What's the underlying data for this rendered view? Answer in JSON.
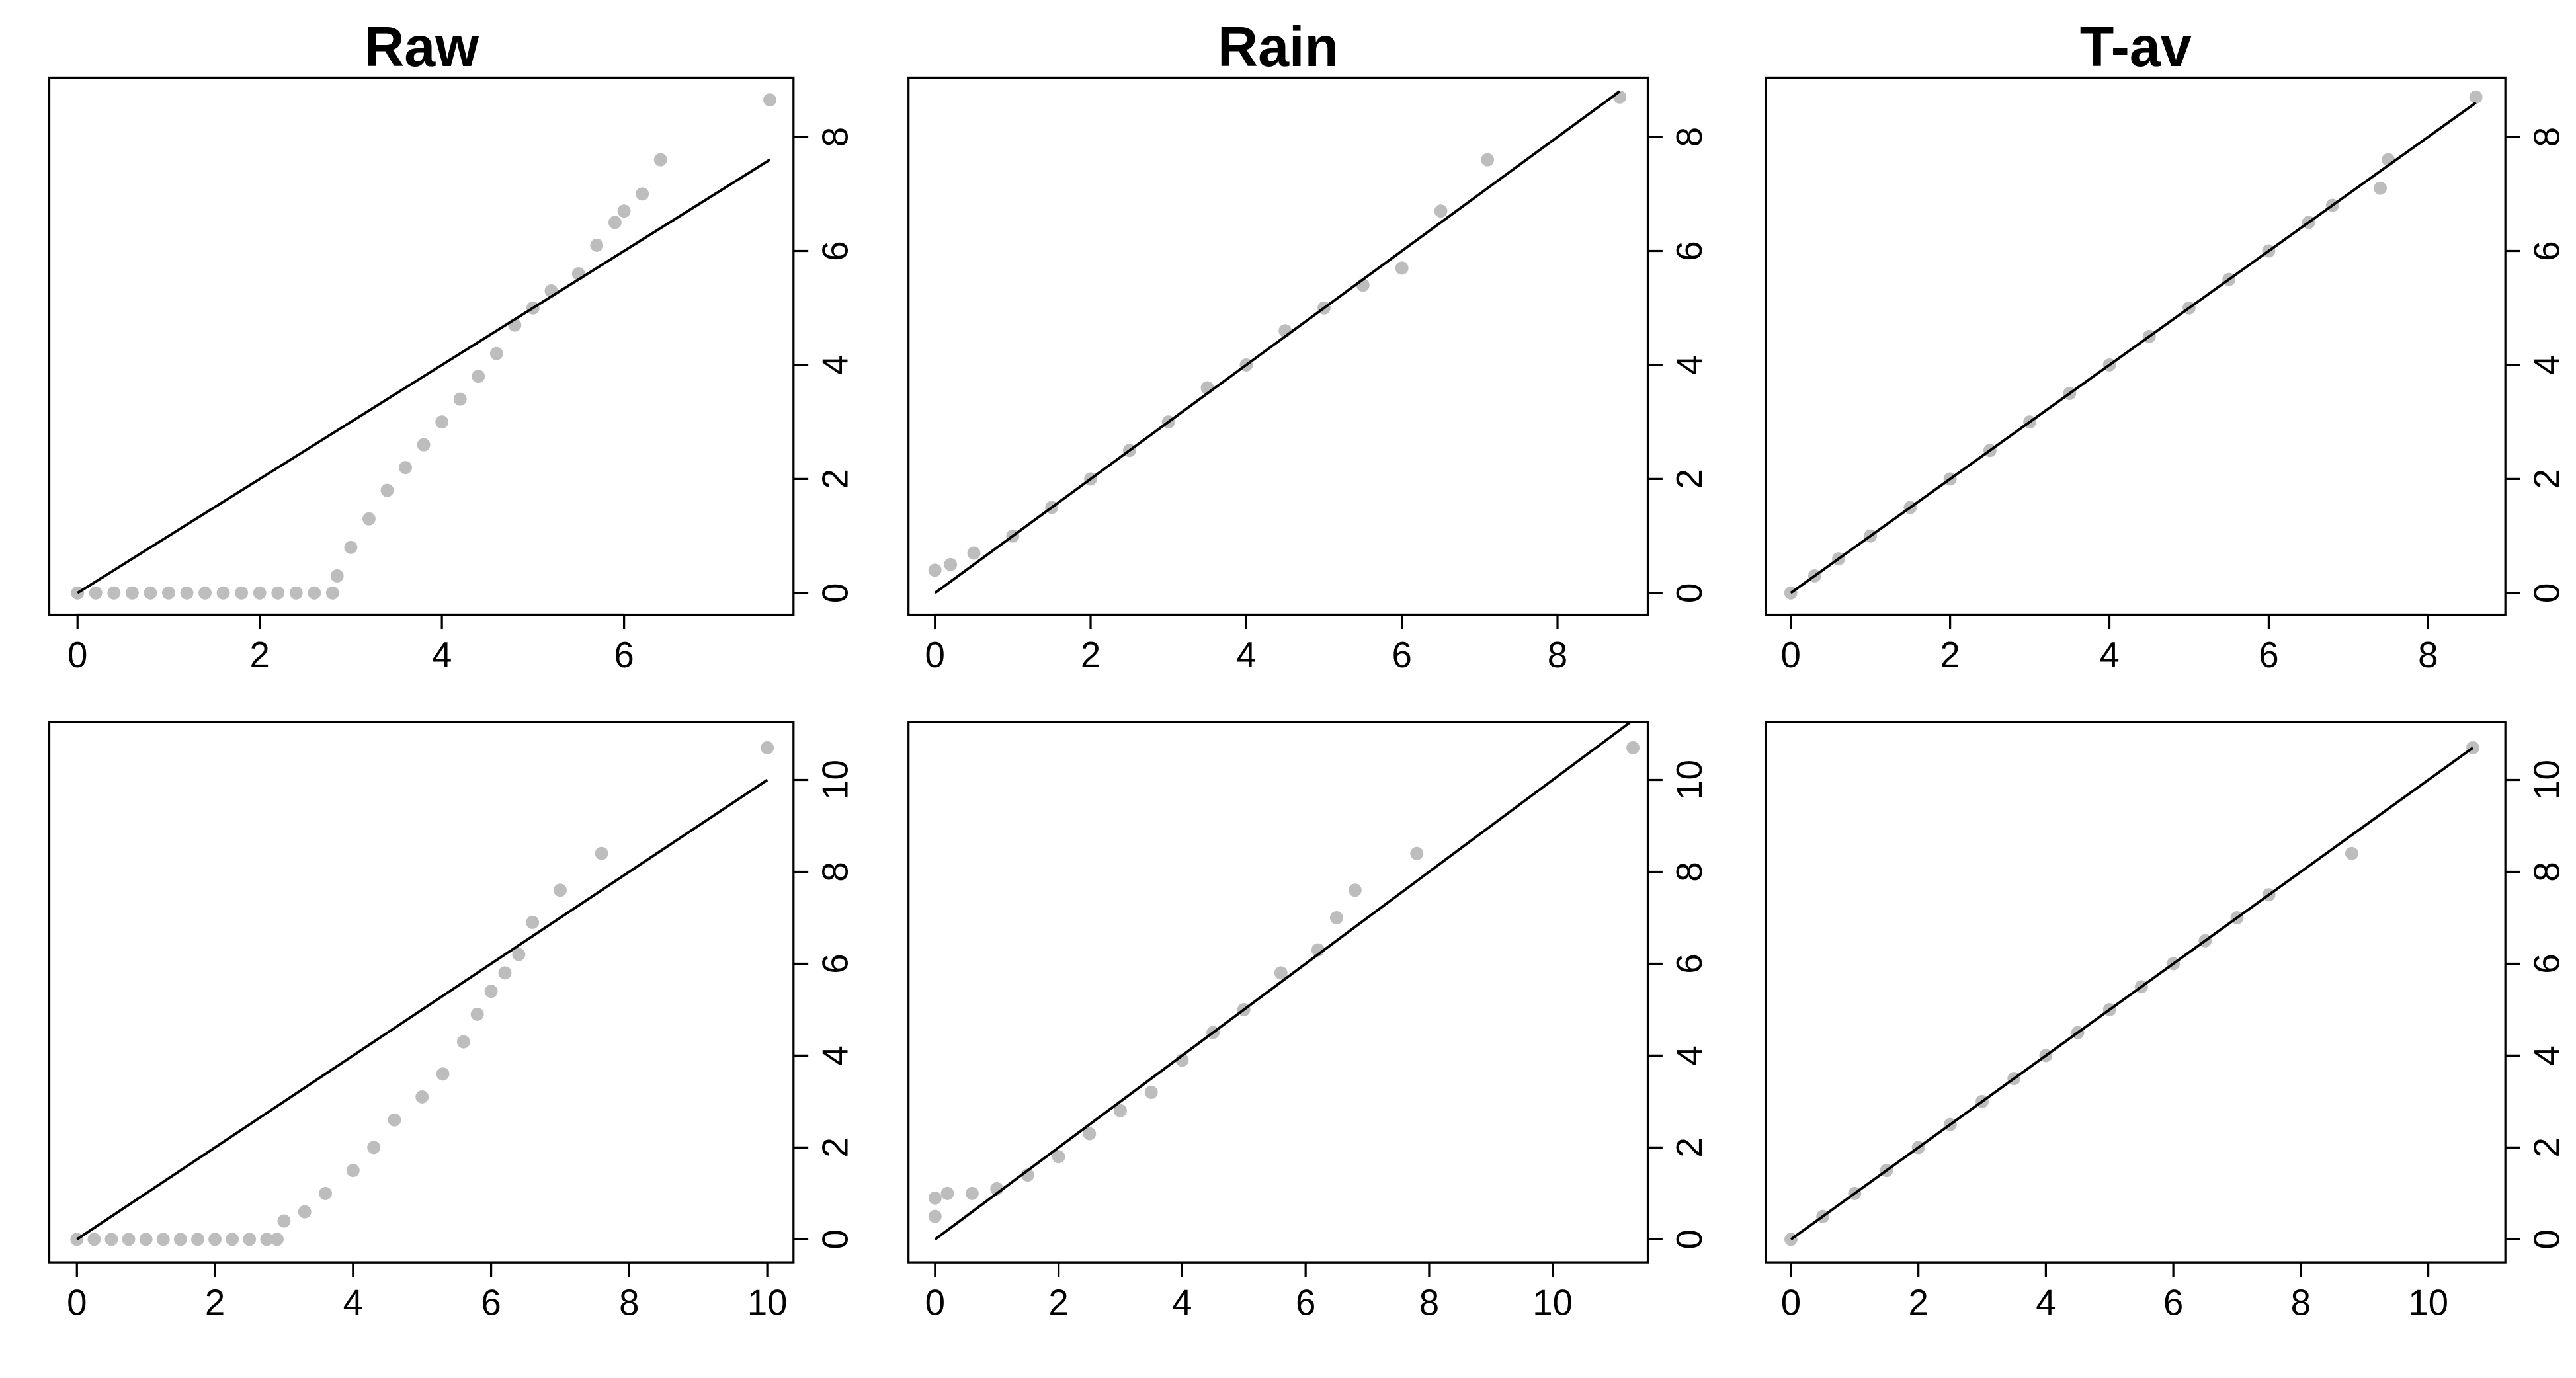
{
  "chart_data": [
    {
      "type": "scatter",
      "title": "Raw",
      "color": "#bdbdbd",
      "x": [
        0,
        0.2,
        0.4,
        0.6,
        0.8,
        1.0,
        1.2,
        1.4,
        1.6,
        1.8,
        2.0,
        2.2,
        2.4,
        2.6,
        2.8,
        2.85,
        3.0,
        3.2,
        3.4,
        3.6,
        3.8,
        4.0,
        4.2,
        4.4,
        4.6,
        4.8,
        5.0,
        5.2,
        5.5,
        5.7,
        5.9,
        6.0,
        6.2,
        6.4,
        7.6
      ],
      "values": [
        0,
        0,
        0,
        0,
        0,
        0,
        0,
        0,
        0,
        0,
        0,
        0,
        0,
        0,
        0,
        0.3,
        0.8,
        1.3,
        1.8,
        2.2,
        2.6,
        3.0,
        3.4,
        3.8,
        4.2,
        4.7,
        5.0,
        5.3,
        5.6,
        6.1,
        6.5,
        6.7,
        7.0,
        7.6,
        8.65
      ],
      "reference_line": {
        "x": [
          0,
          7.6
        ],
        "values": [
          0,
          7.6
        ],
        "color": "#000000"
      },
      "xlim": [
        -0.31,
        7.86
      ],
      "ylim": [
        -0.38,
        9.04
      ],
      "xticks": [
        0,
        2,
        4,
        6
      ],
      "yticks": [
        0,
        2,
        4,
        6,
        8
      ]
    },
    {
      "type": "scatter",
      "title": "Rain",
      "color": "#bdbdbd",
      "x": [
        0,
        0.2,
        0.5,
        1.0,
        1.5,
        2.0,
        2.5,
        3.0,
        3.5,
        4.0,
        4.5,
        5.0,
        5.5,
        6.0,
        6.5,
        7.1,
        8.8
      ],
      "values": [
        0.4,
        0.5,
        0.7,
        1.0,
        1.5,
        2.0,
        2.5,
        3.0,
        3.6,
        4.0,
        4.6,
        5.0,
        5.4,
        5.7,
        6.7,
        7.6,
        8.7
      ],
      "reference_line": {
        "x": [
          0,
          8.8
        ],
        "values": [
          0,
          8.8
        ],
        "color": "#000000"
      },
      "xlim": [
        -0.34,
        9.16
      ],
      "ylim": [
        -0.38,
        9.04
      ],
      "xticks": [
        0,
        2,
        4,
        6,
        8
      ],
      "yticks": [
        0,
        2,
        4,
        6,
        8
      ]
    },
    {
      "type": "scatter",
      "title": "T-av",
      "color": "#bdbdbd",
      "x": [
        0,
        0.3,
        0.6,
        1.0,
        1.5,
        2.0,
        2.5,
        3.0,
        3.5,
        4.0,
        4.5,
        5.0,
        5.5,
        6.0,
        6.5,
        6.8,
        7.4,
        7.5,
        8.6
      ],
      "values": [
        0,
        0.3,
        0.6,
        1.0,
        1.5,
        2.0,
        2.5,
        3.0,
        3.5,
        4.0,
        4.5,
        5.0,
        5.5,
        6.0,
        6.5,
        6.8,
        7.1,
        7.6,
        8.7
      ],
      "reference_line": {
        "x": [
          0,
          8.6
        ],
        "values": [
          0,
          8.6
        ],
        "color": "#000000"
      },
      "xlim": [
        -0.31,
        8.97
      ],
      "ylim": [
        -0.38,
        9.04
      ],
      "xticks": [
        0,
        2,
        4,
        6,
        8
      ],
      "yticks": [
        0,
        2,
        4,
        6,
        8
      ]
    },
    {
      "type": "scatter",
      "color": "#bdbdbd",
      "x": [
        0,
        0.25,
        0.5,
        0.75,
        1.0,
        1.25,
        1.5,
        1.75,
        2.0,
        2.25,
        2.5,
        2.75,
        2.9,
        3.0,
        3.3,
        3.6,
        4.0,
        4.3,
        4.6,
        5.0,
        5.3,
        5.6,
        5.8,
        6.0,
        6.2,
        6.4,
        6.6,
        7.0,
        7.6,
        10.0
      ],
      "values": [
        0,
        0,
        0,
        0,
        0,
        0,
        0,
        0,
        0,
        0,
        0,
        0,
        0,
        0.4,
        0.6,
        1.0,
        1.5,
        2.0,
        2.6,
        3.1,
        3.6,
        4.3,
        4.9,
        5.4,
        5.8,
        6.2,
        6.9,
        7.6,
        8.4,
        10.7
      ],
      "reference_line": {
        "x": [
          0,
          10
        ],
        "values": [
          0,
          10
        ],
        "color": "#000000"
      },
      "xlim": [
        -0.4,
        10.38
      ],
      "ylim": [
        -0.5,
        11.26
      ],
      "xticks": [
        0,
        2,
        4,
        6,
        8,
        10
      ],
      "yticks": [
        0,
        2,
        4,
        6,
        8,
        10
      ]
    },
    {
      "type": "scatter",
      "color": "#bdbdbd",
      "x": [
        0,
        0,
        0.2,
        0.6,
        1.0,
        1.5,
        2.0,
        2.5,
        3.0,
        3.5,
        4.0,
        4.5,
        5.0,
        5.6,
        6.2,
        6.5,
        6.8,
        7.8,
        11.3
      ],
      "values": [
        0.5,
        0.9,
        1.0,
        1.0,
        1.1,
        1.4,
        1.8,
        2.3,
        2.8,
        3.2,
        3.9,
        4.5,
        5.0,
        5.8,
        6.3,
        7.0,
        7.6,
        8.4,
        10.7
      ],
      "reference_line": {
        "x": [
          0,
          11.25
        ],
        "values": [
          0,
          11.25
        ],
        "color": "#000000"
      },
      "xlim": [
        -0.43,
        11.54
      ],
      "ylim": [
        -0.5,
        11.26
      ],
      "xticks": [
        0,
        2,
        4,
        6,
        8,
        10
      ],
      "yticks": [
        0,
        2,
        4,
        6,
        8,
        10
      ]
    },
    {
      "type": "scatter",
      "color": "#bdbdbd",
      "x": [
        0,
        0.5,
        1.0,
        1.5,
        2.0,
        2.5,
        3.0,
        3.5,
        4.0,
        4.5,
        5.0,
        5.5,
        6.0,
        6.5,
        7.0,
        7.5,
        8.8,
        10.7
      ],
      "values": [
        0,
        0.5,
        1.0,
        1.5,
        2.0,
        2.5,
        3.0,
        3.5,
        4.0,
        4.5,
        5.0,
        5.5,
        6.0,
        6.5,
        7.0,
        7.5,
        8.4,
        10.7
      ],
      "reference_line": {
        "x": [
          0,
          10.7
        ],
        "values": [
          0,
          10.7
        ],
        "color": "#000000"
      },
      "xlim": [
        -0.39,
        11.21
      ],
      "ylim": [
        -0.5,
        11.26
      ],
      "xticks": [
        0,
        2,
        4,
        6,
        8,
        10
      ],
      "yticks": [
        0,
        2,
        4,
        6,
        8,
        10
      ]
    }
  ]
}
